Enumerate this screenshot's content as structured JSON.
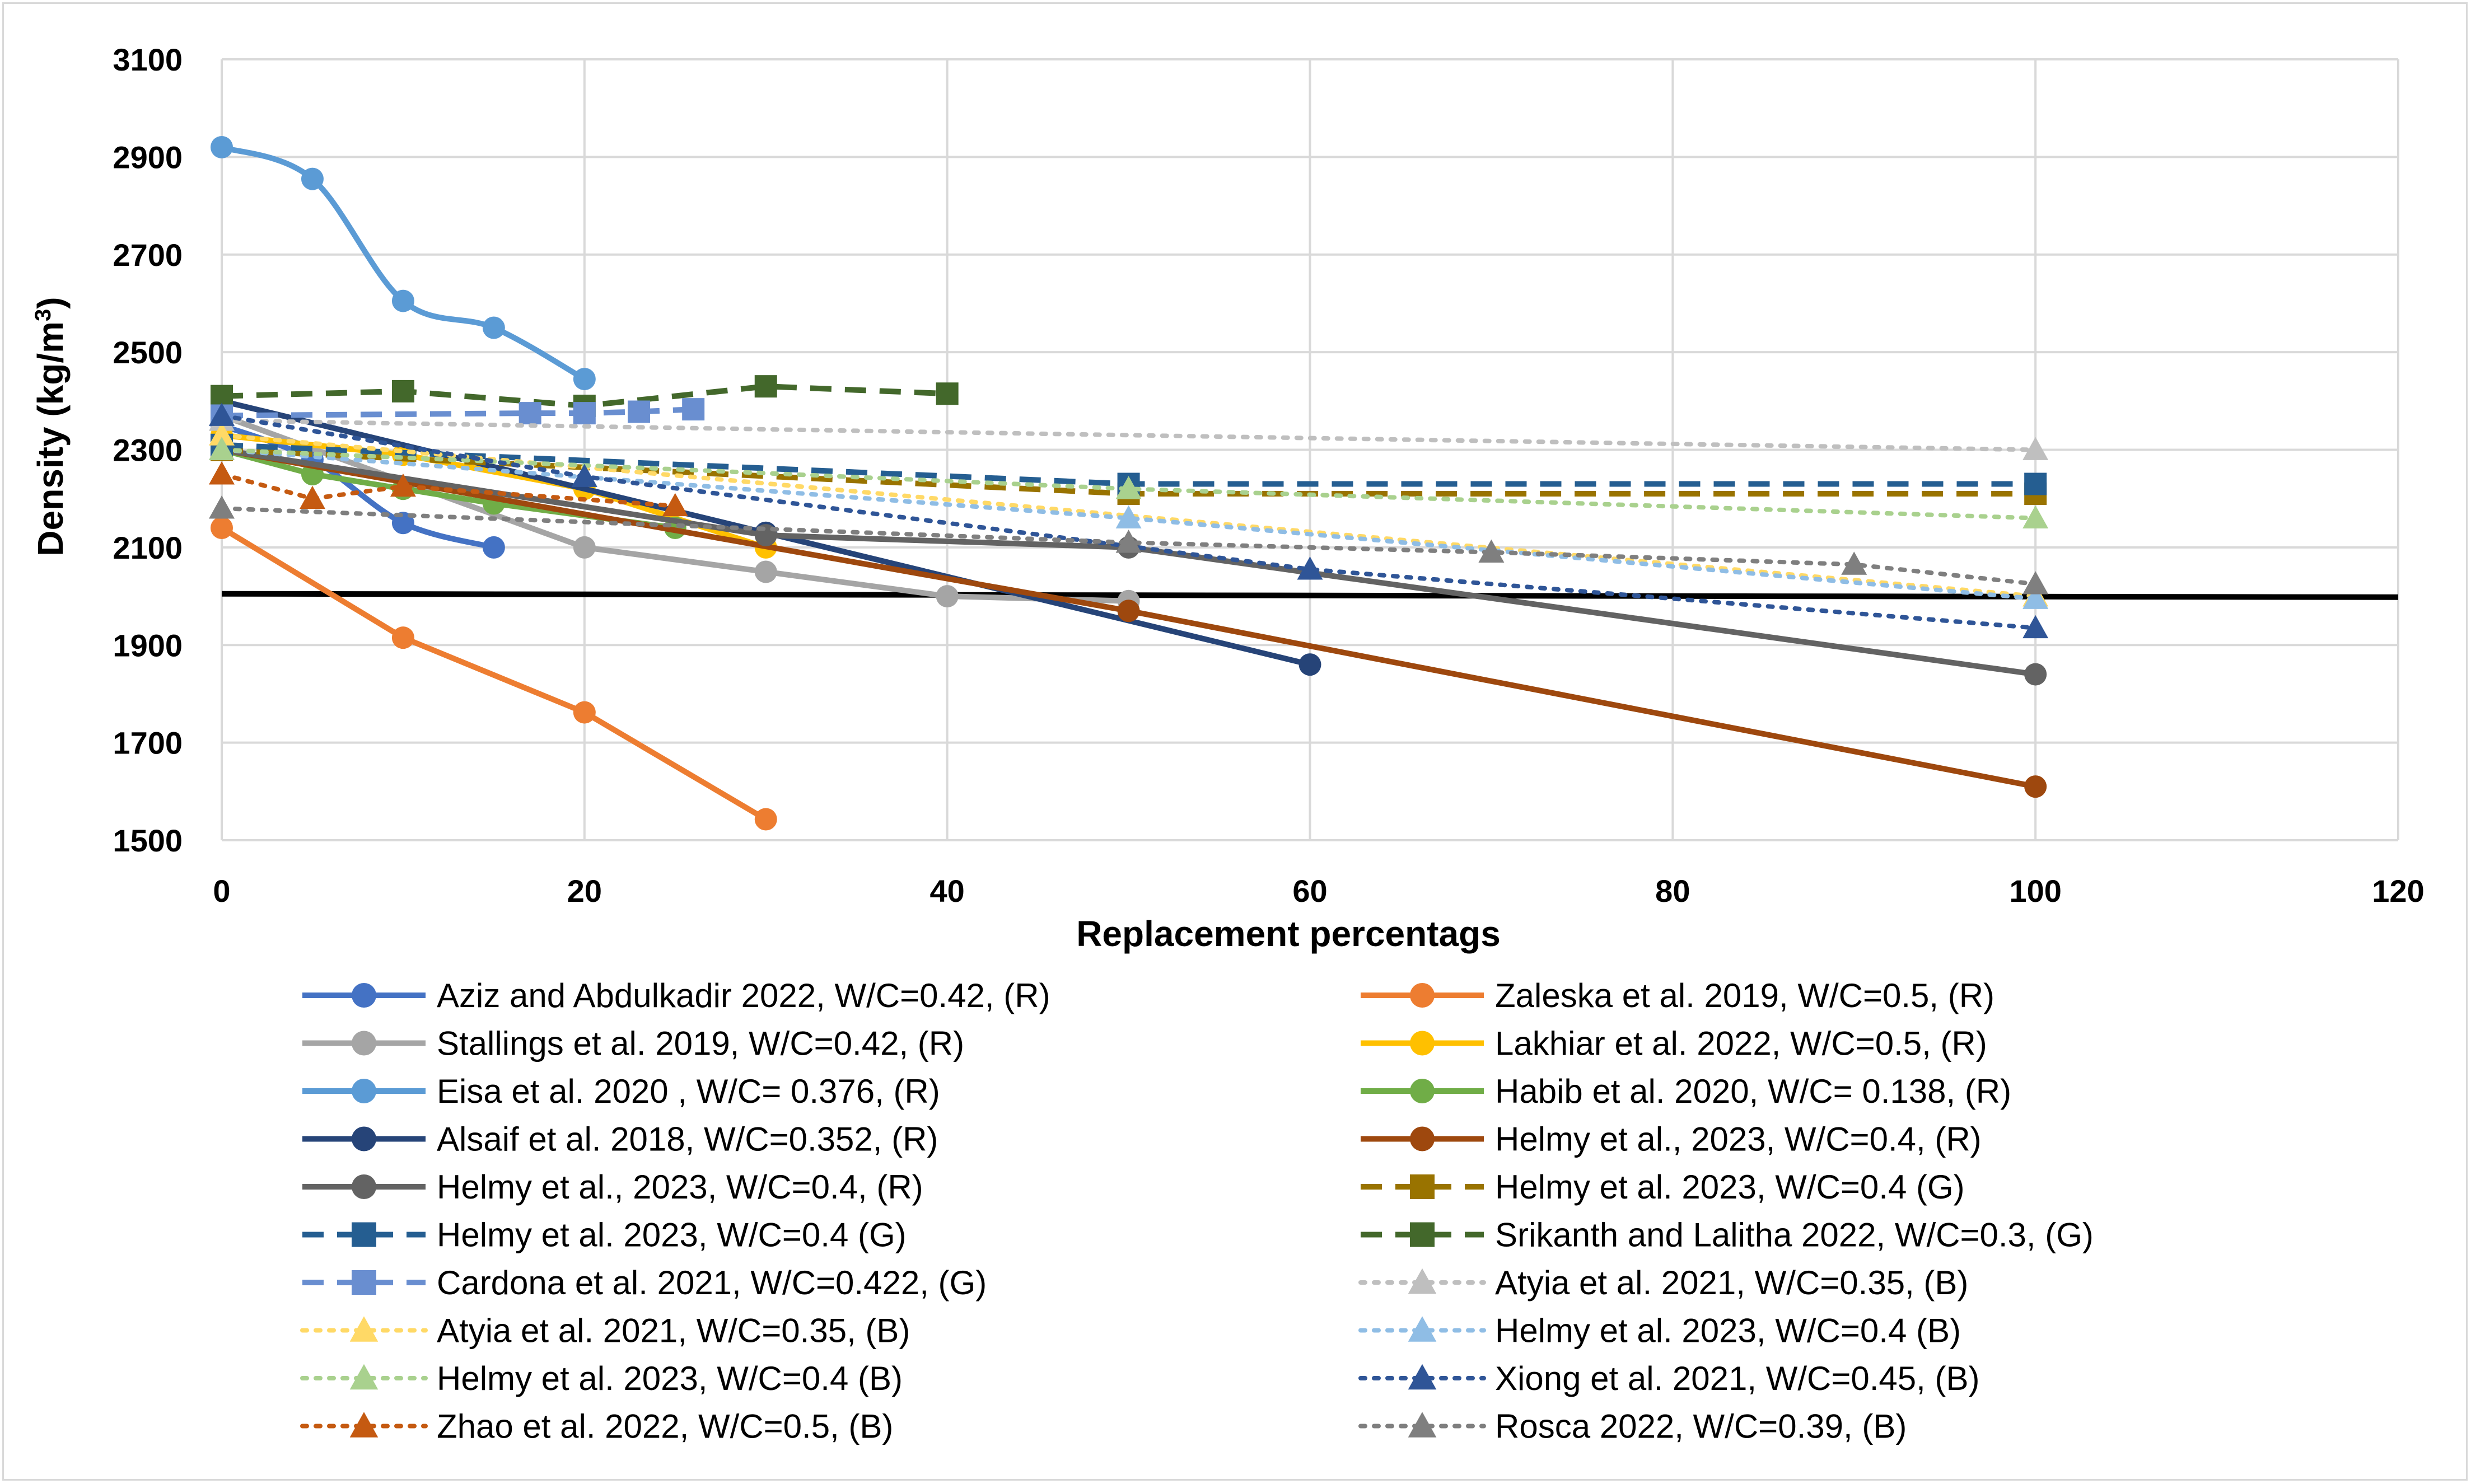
{
  "chart_data": {
    "type": "line",
    "title": "",
    "xlabel": "Replacement percentags",
    "ylabel": "Density (kg/m3)",
    "xlim": [
      0,
      120
    ],
    "ylim": [
      1500,
      3100
    ],
    "x_ticks": [
      "0",
      "20",
      "40",
      "60",
      "80",
      "100",
      "120"
    ],
    "y_ticks": [
      "1500",
      "1700",
      "1900",
      "2100",
      "2300",
      "2500",
      "2700",
      "2900",
      "3100"
    ],
    "grid": true,
    "legend_position": "bottom",
    "reference_line": {
      "y_start": 2005,
      "y_end": 1998,
      "color": "#000000"
    },
    "series": [
      {
        "name": "Aziz and Abdulkadir 2022, W/C=0.42, (R)",
        "color": "#4472c4",
        "dash": "solid",
        "marker": "circle",
        "smooth": true,
        "points": [
          [
            0,
            2350
          ],
          [
            5,
            2280
          ],
          [
            10,
            2150
          ],
          [
            15,
            2100
          ]
        ]
      },
      {
        "name": "Zaleska et al. 2019, W/C=0.5, (R)",
        "color": "#ed7d31",
        "dash": "solid",
        "marker": "circle",
        "smooth": false,
        "points": [
          [
            0,
            2140
          ],
          [
            10,
            1915
          ],
          [
            20,
            1762
          ],
          [
            30,
            1543
          ]
        ]
      },
      {
        "name": "Stallings et al. 2019, W/C=0.42, (R)",
        "color": "#a5a5a5",
        "dash": "solid",
        "marker": "circle",
        "smooth": false,
        "points": [
          [
            0,
            2370
          ],
          [
            20,
            2100
          ],
          [
            30,
            2050
          ],
          [
            40,
            2000
          ],
          [
            50,
            1990
          ]
        ]
      },
      {
        "name": "Lakhiar et al. 2022, W/C=0.5, (R)",
        "color": "#ffc000",
        "dash": "solid",
        "marker": "circle",
        "smooth": false,
        "points": [
          [
            0,
            2330
          ],
          [
            10,
            2290
          ],
          [
            20,
            2220
          ],
          [
            30,
            2100
          ]
        ]
      },
      {
        "name": "Eisa et al. 2020 , W/C= 0.376, (R)",
        "color": "#5b9bd5",
        "dash": "solid",
        "marker": "circle",
        "smooth": true,
        "points": [
          [
            0,
            2920
          ],
          [
            5,
            2855
          ],
          [
            10,
            2605
          ],
          [
            15,
            2550
          ],
          [
            20,
            2445
          ]
        ]
      },
      {
        "name": "Habib et al. 2020, W/C= 0.138, (R)",
        "color": "#70ad47",
        "dash": "solid",
        "marker": "circle",
        "smooth": false,
        "points": [
          [
            0,
            2300
          ],
          [
            5,
            2250
          ],
          [
            10,
            2220
          ],
          [
            15,
            2190
          ],
          [
            25,
            2140
          ]
        ]
      },
      {
        "name": "Alsaif et al. 2018, W/C=0.352, (R)",
        "color": "#264478",
        "dash": "solid",
        "marker": "circle",
        "smooth": false,
        "points": [
          [
            0,
            2400
          ],
          [
            30,
            2130
          ],
          [
            60,
            1860
          ]
        ]
      },
      {
        "name": "Helmy et al., 2023, W/C=0.4, (R)",
        "color": "#9e480e",
        "dash": "solid",
        "marker": "circle",
        "smooth": false,
        "points": [
          [
            0,
            2300
          ],
          [
            50,
            1970
          ],
          [
            100,
            1610
          ]
        ]
      },
      {
        "name": "Helmy et al., 2023, W/C=0.4, (R)",
        "color": "#636363",
        "dash": "solid",
        "marker": "circle",
        "smooth": false,
        "points": [
          [
            0,
            2300
          ],
          [
            30,
            2125
          ],
          [
            50,
            2100
          ],
          [
            100,
            1840
          ]
        ]
      },
      {
        "name": "Helmy et al. 2023, W/C=0.4 (G)",
        "color": "#997300",
        "dash": "dash",
        "marker": "square",
        "smooth": false,
        "points": [
          [
            0,
            2300
          ],
          [
            50,
            2210
          ],
          [
            100,
            2210
          ]
        ]
      },
      {
        "name": "Helmy et al. 2023, W/C=0.4 (G)",
        "color": "#255e91",
        "dash": "dash",
        "marker": "square",
        "smooth": false,
        "points": [
          [
            0,
            2310
          ],
          [
            50,
            2230
          ],
          [
            100,
            2230
          ]
        ]
      },
      {
        "name": "Srikanth and Lalitha 2022, W/C=0.3, (G)",
        "color": "#43682b",
        "dash": "dash",
        "marker": "square",
        "smooth": false,
        "points": [
          [
            0,
            2410
          ],
          [
            10,
            2420
          ],
          [
            20,
            2390
          ],
          [
            30,
            2430
          ],
          [
            40,
            2415
          ]
        ]
      },
      {
        "name": "Cardona et al. 2021, W/C=0.422, (G)",
        "color": "#698ed0",
        "dash": "dash",
        "marker": "square",
        "smooth": false,
        "points": [
          [
            0,
            2370
          ],
          [
            17,
            2375
          ],
          [
            20,
            2375
          ],
          [
            23,
            2378
          ],
          [
            26,
            2383
          ]
        ]
      },
      {
        "name": "Atyia et al. 2021, W/C=0.35, (B)",
        "color": "#bfbfbf",
        "dash": "dot",
        "marker": "triangle",
        "smooth": false,
        "points": [
          [
            0,
            2360
          ],
          [
            100,
            2300
          ]
        ]
      },
      {
        "name": "Atyia et al. 2021, W/C=0.35, (B)",
        "color": "#ffd966",
        "dash": "dot",
        "marker": "triangle",
        "smooth": false,
        "points": [
          [
            0,
            2330
          ],
          [
            100,
            2000
          ]
        ]
      },
      {
        "name": "Helmy et al. 2023, W/C=0.4 (B)",
        "color": "#8fbde5",
        "dash": "dot",
        "marker": "triangle",
        "smooth": false,
        "points": [
          [
            0,
            2300
          ],
          [
            50,
            2160
          ],
          [
            100,
            1995
          ]
        ]
      },
      {
        "name": "Helmy et al. 2023, W/C=0.4 (B)",
        "color": "#a9d18e",
        "dash": "dot",
        "marker": "triangle",
        "smooth": false,
        "points": [
          [
            0,
            2300
          ],
          [
            50,
            2220
          ],
          [
            100,
            2160
          ]
        ]
      },
      {
        "name": "Xiong et al. 2021, W/C=0.45, (B)",
        "color": "#2f5597",
        "dash": "dot",
        "marker": "triangle",
        "smooth": false,
        "points": [
          [
            0,
            2370
          ],
          [
            20,
            2245
          ],
          [
            60,
            2055
          ],
          [
            100,
            1935
          ]
        ]
      },
      {
        "name": "Zhao et al. 2022, W/C=0.5, (B)",
        "color": "#c55a11",
        "dash": "dot",
        "marker": "triangle",
        "smooth": false,
        "points": [
          [
            0,
            2250
          ],
          [
            5,
            2200
          ],
          [
            10,
            2225
          ],
          [
            25,
            2185
          ]
        ]
      },
      {
        "name": "Rosca 2022, W/C=0.39, (B)",
        "color": "#7f7f7f",
        "dash": "dot",
        "marker": "triangle",
        "smooth": false,
        "points": [
          [
            0,
            2180
          ],
          [
            50,
            2110
          ],
          [
            70,
            2090
          ],
          [
            90,
            2065
          ],
          [
            100,
            2025
          ]
        ]
      }
    ]
  }
}
